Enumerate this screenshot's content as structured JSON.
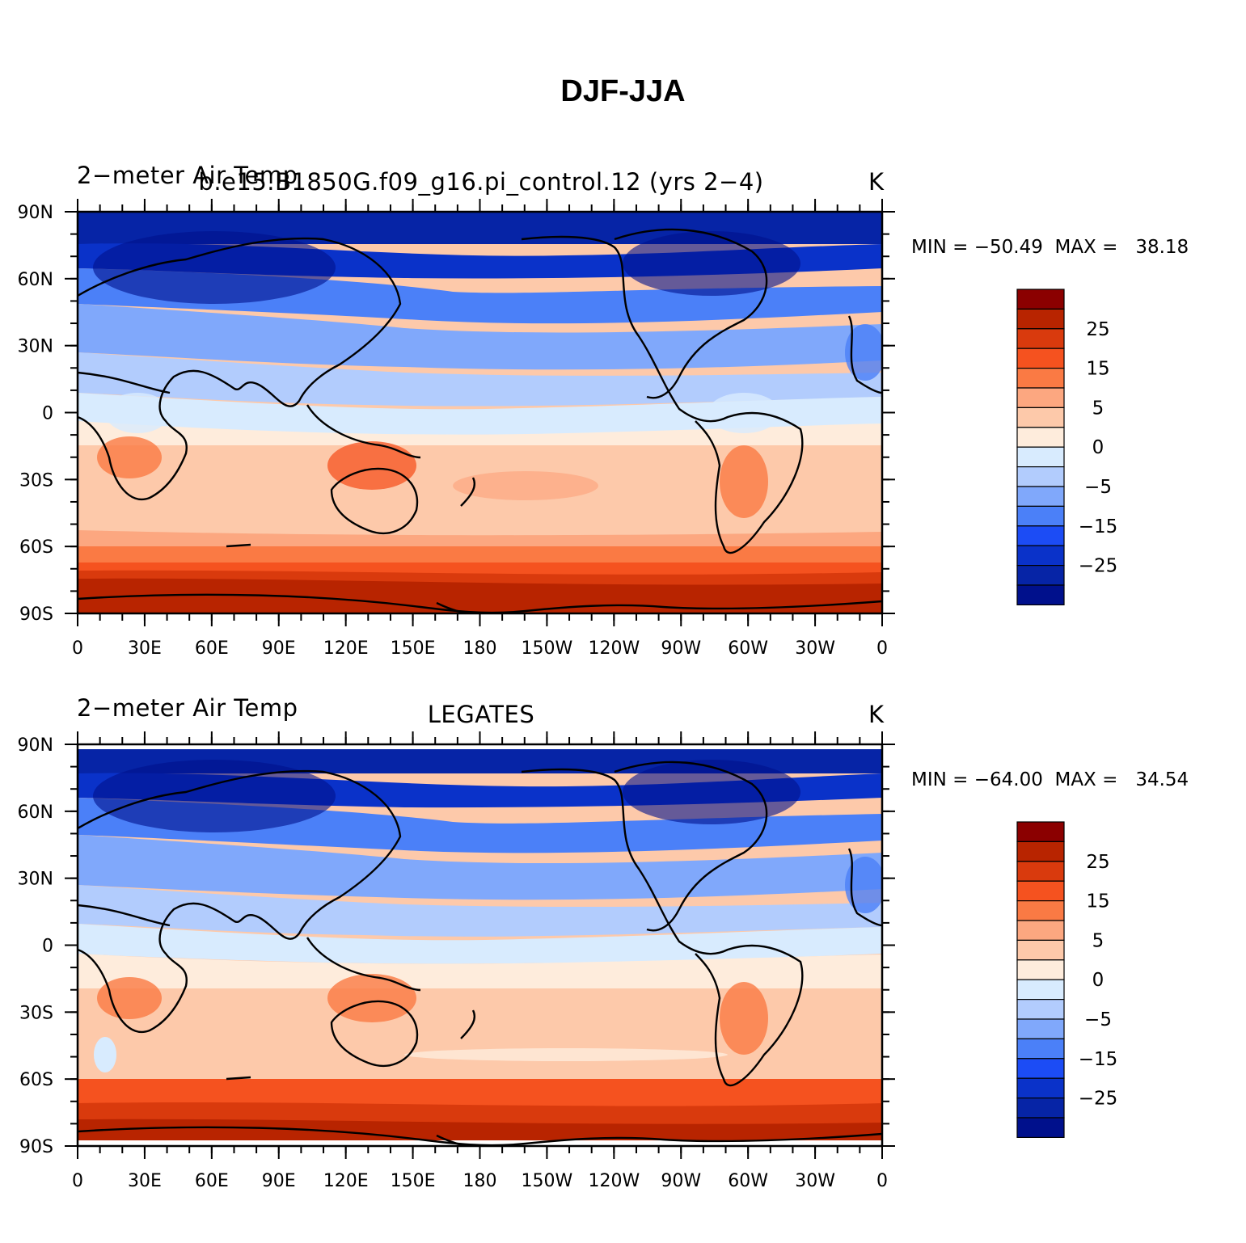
{
  "title": "DJF-JJA",
  "units": "K",
  "x_ticks": [
    "0",
    "30E",
    "60E",
    "90E",
    "120E",
    "150E",
    "180",
    "150W",
    "120W",
    "90W",
    "60W",
    "30W",
    "0"
  ],
  "y_ticks": [
    "90N",
    "60N",
    "30N",
    "0",
    "30S",
    "60S",
    "90S"
  ],
  "colorbar": {
    "labels": [
      "25",
      "15",
      "5",
      "0",
      "−5",
      "−15",
      "−25"
    ],
    "colors": [
      "#8b0000",
      "#b82400",
      "#d93a0d",
      "#f5521f",
      "#fa7a44",
      "#fca780",
      "#fdc9aa",
      "#feecdc",
      "#d8ebfe",
      "#b2ccfd",
      "#80a8fb",
      "#4b80f8",
      "#1c4cf5",
      "#0a32c9",
      "#0624a6",
      "#00108c"
    ]
  },
  "panels": [
    {
      "left_title": "2−meter Air Temp",
      "center_title": "b.e15.B1850G.f09_g16.pi_control.12 (yrs 2−4)",
      "right_title": "K",
      "min_label": "MIN = −50.49",
      "max_label": "MAX =   38.18",
      "min": -50.49,
      "max": 38.18
    },
    {
      "left_title": "2−meter Air Temp",
      "center_title": "LEGATES",
      "right_title": "K",
      "min_label": "MIN = −64.00",
      "max_label": "MAX =   34.54",
      "min": -64.0,
      "max": 34.54
    }
  ]
}
